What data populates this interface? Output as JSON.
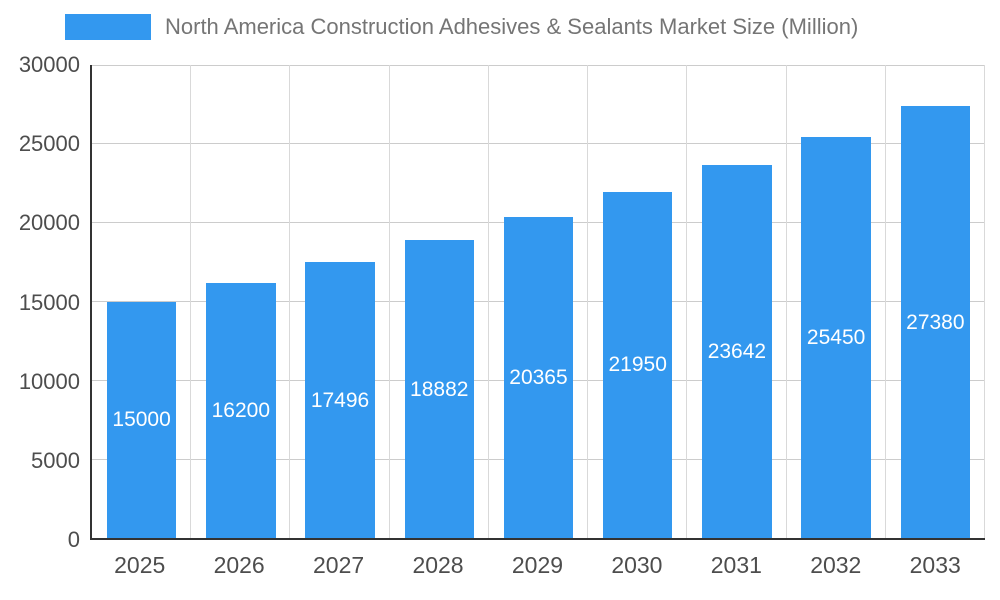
{
  "chart_data": {
    "type": "bar",
    "title": "North America Construction Adhesives & Sealants Market Size (Million)",
    "categories": [
      "2025",
      "2026",
      "2027",
      "2028",
      "2029",
      "2030",
      "2031",
      "2032",
      "2033"
    ],
    "values": [
      15000,
      16200,
      17496,
      18882,
      20365,
      21950,
      23642,
      25450,
      27380
    ],
    "xlabel": "",
    "ylabel": "",
    "ylim": [
      0,
      30000
    ],
    "yticks": [
      0,
      5000,
      10000,
      15000,
      20000,
      25000,
      30000
    ],
    "grid": true,
    "legend_position": "top",
    "bar_color": "#3398ef",
    "bar_label_color": "#ffffff",
    "axis_label_color": "#4d4d4d",
    "title_color": "#757575"
  }
}
